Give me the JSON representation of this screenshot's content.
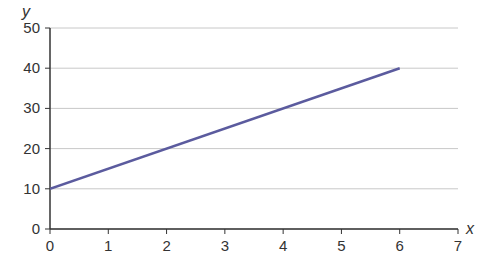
{
  "chart_data": {
    "type": "line",
    "x_label": "x",
    "y_label": "y",
    "x": [
      0,
      6
    ],
    "values": [
      10,
      40
    ],
    "color": "#5b5b9e",
    "xlim": [
      0,
      7
    ],
    "xticks": [
      0,
      1,
      2,
      3,
      4,
      5,
      6,
      7
    ],
    "ylim": [
      0,
      50
    ],
    "yticks": [
      0,
      10,
      20,
      30,
      40,
      50
    ],
    "grid": true
  }
}
